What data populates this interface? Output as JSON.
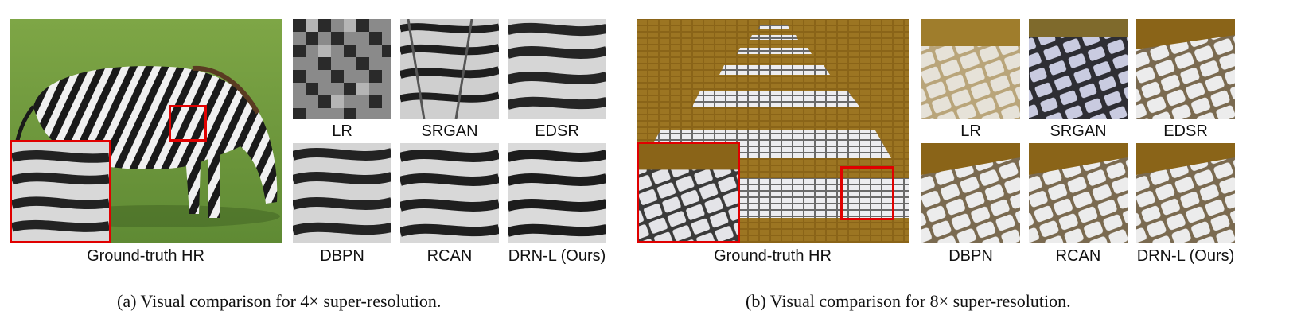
{
  "figure_a": {
    "hr_label": "Ground-truth HR",
    "method_labels": [
      "LR",
      "SRGAN",
      "EDSR",
      "DBPN",
      "RCAN",
      "DRN-L (Ours)"
    ],
    "caption": "(a)  Visual comparison for 4× super-resolution."
  },
  "figure_b": {
    "hr_label": "Ground-truth HR",
    "method_labels": [
      "LR",
      "SRGAN",
      "EDSR",
      "DBPN",
      "RCAN",
      "DRN-L (Ours)"
    ],
    "caption": "(b)  Visual comparison for 8× super-resolution."
  },
  "colors": {
    "zoom_box": "#e00000",
    "grass": "#6f9a3c",
    "stripe_dark": "#1a1a1a",
    "stripe_light": "#f2f2f2",
    "pavement_brown": "#8a6418",
    "tile_white": "#e8e8ec"
  }
}
